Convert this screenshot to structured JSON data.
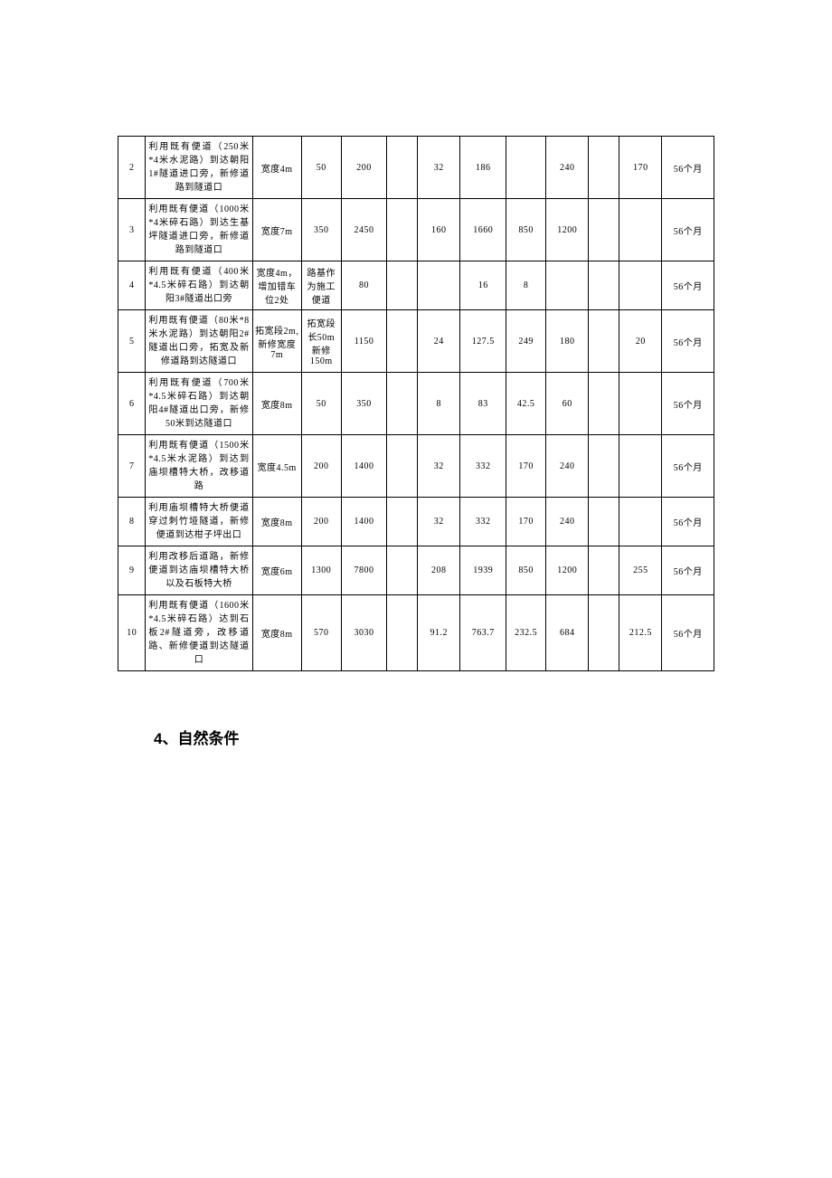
{
  "table": {
    "column_widths": [
      "4.5%",
      "17.5%",
      "8%",
      "6.5%",
      "7.5%",
      "5%",
      "7%",
      "7.5%",
      "6.5%",
      "7%",
      "5%",
      "7%",
      "8.5%"
    ],
    "border_color": "#000000",
    "background_color": "#ffffff",
    "font_size": 10,
    "rows": [
      {
        "idx": "2",
        "desc": "利用既有便道（250米*4米水泥路）到达朝阳1#隧道进口旁，新修道路到隧道口",
        "spec": "宽度4m",
        "c3": "50",
        "c4": "200",
        "c5": "",
        "c6": "32",
        "c7": "186",
        "c8": "",
        "c9": "240",
        "c10": "",
        "c11": "170",
        "dur": "56个月"
      },
      {
        "idx": "3",
        "desc": "利用既有便道（1000米*4米碎石路）到达生基坪隧道进口旁，新修道路到隧道口",
        "spec": "宽度7m",
        "c3": "350",
        "c4": "2450",
        "c5": "",
        "c6": "160",
        "c7": "1660",
        "c8": "850",
        "c9": "1200",
        "c10": "",
        "c11": "",
        "dur": "56个月"
      },
      {
        "idx": "4",
        "desc": "利用既有便道（400米*4.5米碎石路）到达朝阳3#隧道出口旁",
        "spec": "宽度4m，增加错车位2处",
        "c3": "路基作为施工便道",
        "c4": "80",
        "c5": "",
        "c6": "",
        "c7": "16",
        "c8": "8",
        "c9": "",
        "c10": "",
        "c11": "",
        "dur": "56个月"
      },
      {
        "idx": "5",
        "desc": "利用既有便道（80米*8米水泥路）到达朝阳2#隧道出口旁，拓宽及新修道路到达隧道口",
        "spec": "拓宽段2m,新修宽度7m",
        "c3": "拓宽段长50m 新修150m",
        "c4": "1150",
        "c5": "",
        "c6": "24",
        "c7": "127.5",
        "c8": "249",
        "c9": "180",
        "c10": "",
        "c11": "20",
        "dur": "56个月"
      },
      {
        "idx": "6",
        "desc": "利用既有便道（700米*4.5米碎石路）到达朝阳4#隧道出口旁，新修50米到达隧道口",
        "spec": "宽度8m",
        "c3": "50",
        "c4": "350",
        "c5": "",
        "c6": "8",
        "c7": "83",
        "c8": "42.5",
        "c9": "60",
        "c10": "",
        "c11": "",
        "dur": "56个月"
      },
      {
        "idx": "7",
        "desc": "利用既有便道（1500米*4.5米水泥路）到达到庙坝槽特大桥，改移道路",
        "spec": "宽度4.5m",
        "c3": "200",
        "c4": "1400",
        "c5": "",
        "c6": "32",
        "c7": "332",
        "c8": "170",
        "c9": "240",
        "c10": "",
        "c11": "",
        "dur": "56个月"
      },
      {
        "idx": "8",
        "desc": "利用庙坝槽特大桥便道穿过刺竹垭隧道，新修便道到达柑子坪出口",
        "spec": "宽度8m",
        "c3": "200",
        "c4": "1400",
        "c5": "",
        "c6": "32",
        "c7": "332",
        "c8": "170",
        "c9": "240",
        "c10": "",
        "c11": "",
        "dur": "56个月"
      },
      {
        "idx": "9",
        "desc": "利用改移后道路，新修便道到达庙坝槽特大桥以及石板特大桥",
        "spec": "宽度6m",
        "c3": "1300",
        "c4": "7800",
        "c5": "",
        "c6": "208",
        "c7": "1939",
        "c8": "850",
        "c9": "1200",
        "c10": "",
        "c11": "255",
        "dur": "56个月"
      },
      {
        "idx": "10",
        "desc": "利用既有便道（1600米*4.5米碎石路）达到石板2#隧道旁，改移道路、新修便道到达隧道口",
        "spec": "宽度8m",
        "c3": "570",
        "c4": "3030",
        "c5": "",
        "c6": "91.2",
        "c7": "763.7",
        "c8": "232.5",
        "c9": "684",
        "c10": "",
        "c11": "212.5",
        "dur": "56个月"
      }
    ]
  },
  "heading": "4、自然条件"
}
